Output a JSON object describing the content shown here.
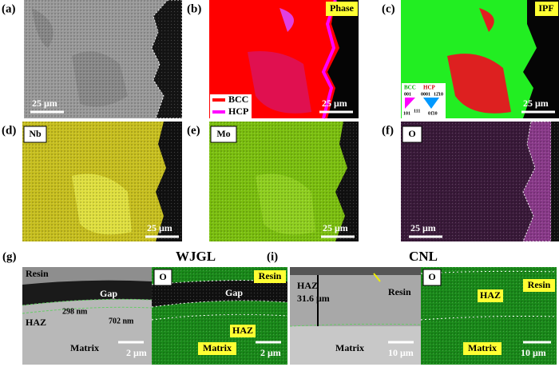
{
  "panels": [
    {
      "label": "(a)",
      "scale_bar": "25 μm"
    },
    {
      "label": "(b)",
      "title": "Phase",
      "legend": [
        "BCC",
        "HCP"
      ],
      "scale_bar": "25 μm"
    },
    {
      "label": "(c)",
      "title": "IPF",
      "legend": [
        "BCC",
        "HCP"
      ],
      "poles": [
        "001",
        "0001",
        "12̄10",
        "101",
        "111",
        "01̄10"
      ],
      "scale_bar": "25 μm"
    },
    {
      "label": "(d)",
      "title": "Nb",
      "scale_bar": "25 μm"
    },
    {
      "label": "(e)",
      "title": "Mo",
      "scale_bar": "25 μm"
    },
    {
      "label": "(f)",
      "title": "O",
      "scale_bar": "25 μm"
    },
    {
      "label": "(g)",
      "title": "WJGL",
      "sem": {
        "labels": [
          "Resin",
          "Gap",
          "HAZ",
          "Matrix"
        ],
        "dimensions": [
          "298 nm",
          "702 nm"
        ],
        "scale_bar": "2 μm"
      },
      "eds": {
        "element": "O",
        "labels": [
          "Resin",
          "Gap",
          "HAZ",
          "Matrix"
        ],
        "scale_bar": "2 μm"
      }
    },
    {
      "label": "(i)",
      "title": "CNL",
      "sem": {
        "labels": [
          "HAZ",
          "Resin",
          "Matrix"
        ],
        "dimensions": [
          "31.6 μm"
        ],
        "scale_bar": "10 μm"
      },
      "eds": {
        "element": "O",
        "labels": [
          "Resin",
          "HAZ",
          "Matrix"
        ],
        "scale_bar": "10 μm"
      }
    }
  ]
}
